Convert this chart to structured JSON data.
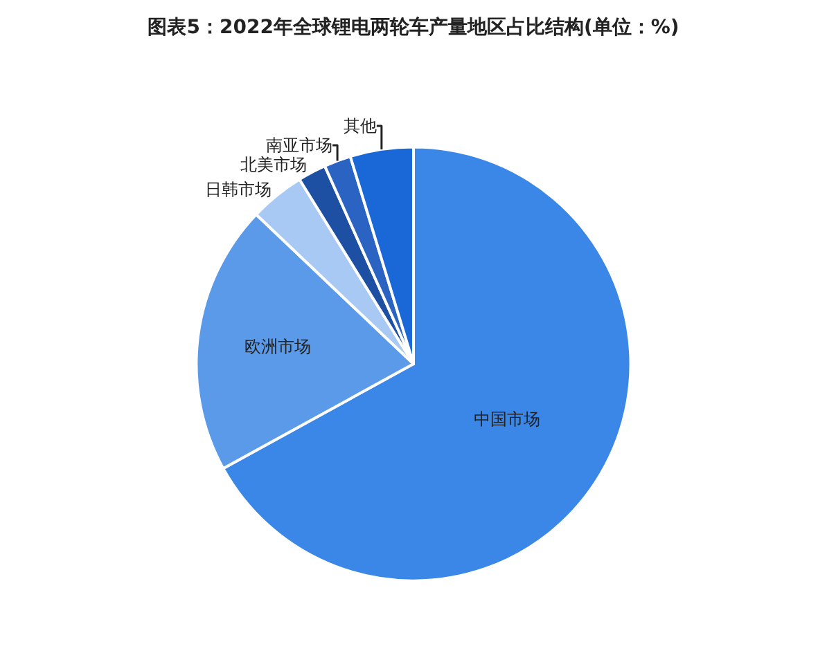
{
  "chart_data": {
    "type": "pie",
    "title": "图表5：2022年全球锂电两轮车产量地区占比结构(单位：%)",
    "categories": [
      "中国市场",
      "欧洲市场",
      "日韩市场",
      "北美市场",
      "南亚市场",
      "其他"
    ],
    "values": [
      67,
      20.1,
      4.1,
      2.1,
      2,
      4.7
    ],
    "colors": [
      "#3b87e8",
      "#5b9ae8",
      "#a7c9f3",
      "#1d4fa3",
      "#2b63c2",
      "#1a67d7"
    ],
    "legend": false
  }
}
